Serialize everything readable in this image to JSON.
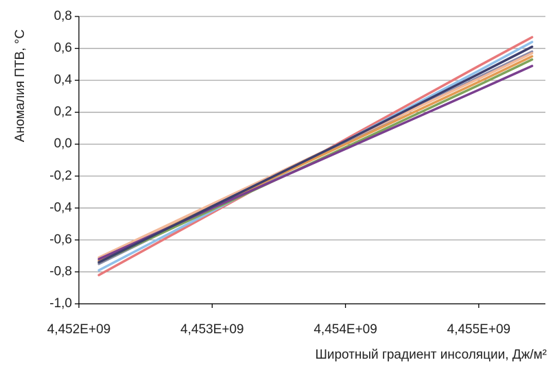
{
  "chart_data": {
    "type": "line",
    "x_label": "Широтный градиент инсоляции, Дж/м²",
    "y_label": "Аномалия ПТВ, °С",
    "x": [
      4452150000,
      4453000000,
      4454000000,
      4455000000,
      4455400000
    ],
    "series": [
      {
        "color": "#e8787a",
        "values": [
          -0.82,
          -0.43,
          0.03,
          0.49,
          0.67
        ]
      },
      {
        "color": "#8fc0ea",
        "values": [
          -0.79,
          -0.42,
          0.02,
          0.46,
          0.64
        ]
      },
      {
        "color": "#8a8aa8",
        "values": [
          -0.75,
          -0.4,
          0.01,
          0.42,
          0.58
        ]
      },
      {
        "color": "#f2b99a",
        "values": [
          -0.71,
          -0.375,
          0.02,
          0.41,
          0.57
        ]
      },
      {
        "color": "#e39a52",
        "values": [
          -0.73,
          -0.39,
          0.0,
          0.39,
          0.55
        ]
      },
      {
        "color": "#7fa35a",
        "values": [
          -0.74,
          -0.41,
          -0.02,
          0.37,
          0.53
        ]
      },
      {
        "color": "#7a3f8f",
        "values": [
          -0.72,
          -0.4,
          -0.03,
          0.34,
          0.49
        ]
      },
      {
        "color": "#3d3f6e",
        "values": [
          -0.74,
          -0.39,
          0.02,
          0.44,
          0.61
        ]
      }
    ],
    "xlim": [
      4452000000,
      4455500000
    ],
    "xticks": [
      {
        "value": 4452000000,
        "label": "4,452E+09"
      },
      {
        "value": 4453000000,
        "label": "4,453E+09"
      },
      {
        "value": 4454000000,
        "label": "4,454E+09"
      },
      {
        "value": 4455000000,
        "label": "4,455E+09"
      }
    ],
    "ylim": [
      -1.0,
      0.8
    ],
    "yticks": [
      {
        "value": -1.0,
        "label": "-1,0"
      },
      {
        "value": -0.8,
        "label": "-0,8"
      },
      {
        "value": -0.6,
        "label": "-0,6"
      },
      {
        "value": -0.4,
        "label": "-0,4"
      },
      {
        "value": -0.2,
        "label": "-0,2"
      },
      {
        "value": 0.0,
        "label": "0,0"
      },
      {
        "value": 0.2,
        "label": "0,2"
      },
      {
        "value": 0.4,
        "label": "0,4"
      },
      {
        "value": 0.6,
        "label": "0,6"
      },
      {
        "value": 0.8,
        "label": "0,8"
      }
    ],
    "grid": true
  }
}
